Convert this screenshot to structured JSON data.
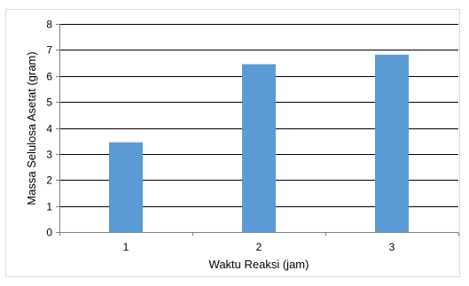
{
  "chart_data": {
    "type": "bar",
    "categories": [
      "1",
      "2",
      "3"
    ],
    "values": [
      3.45,
      6.45,
      6.82
    ],
    "title": "",
    "xlabel": "Waktu Reaksi (jam)",
    "ylabel": "Massa Selulosa Asetat (gram)",
    "ylim": [
      0,
      8
    ],
    "yticks": [
      0,
      1,
      2,
      3,
      4,
      5,
      6,
      7,
      8
    ],
    "grid": true,
    "legend": "none",
    "colors": {
      "bar": "#5b9bd5",
      "grid": "#000000",
      "axis": "#808080"
    }
  }
}
